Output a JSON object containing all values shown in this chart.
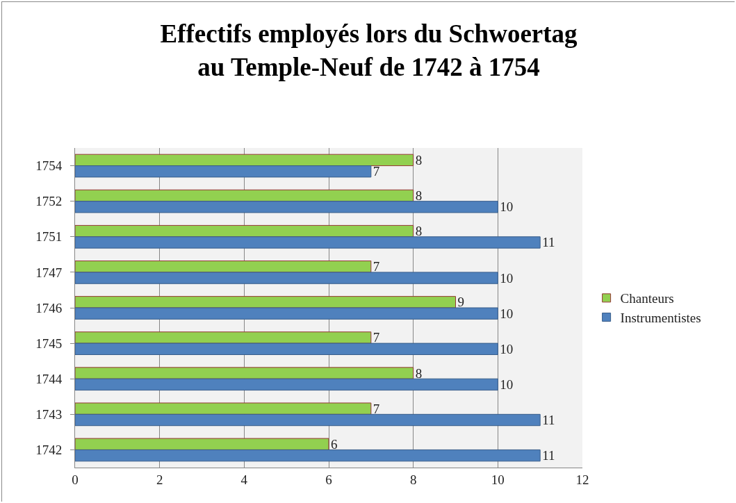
{
  "chart_data": {
    "type": "bar",
    "orientation": "horizontal",
    "title": "Effectifs employés lors du Schwoertag\nau Temple-Neuf de 1742 à 1754",
    "categories": [
      "1754",
      "1752",
      "1751",
      "1747",
      "1746",
      "1745",
      "1744",
      "1743",
      "1742"
    ],
    "series": [
      {
        "name": "Chanteurs",
        "color": "#92d050",
        "values": [
          8,
          8,
          8,
          7,
          9,
          7,
          8,
          7,
          6
        ]
      },
      {
        "name": "Instrumentistes",
        "color": "#4f81bd",
        "values": [
          7,
          10,
          11,
          10,
          10,
          10,
          10,
          11,
          11
        ]
      }
    ],
    "xlim": [
      0,
      12
    ],
    "xticks": [
      0,
      2,
      4,
      6,
      8,
      10,
      12
    ],
    "grid": "x",
    "legend": "right",
    "data_labels": true
  }
}
